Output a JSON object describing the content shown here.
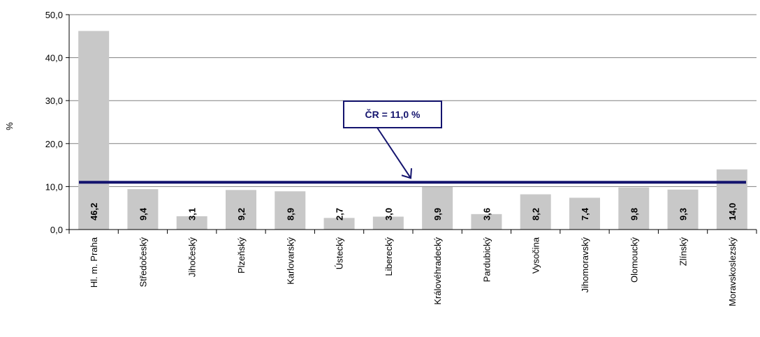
{
  "chart_data": {
    "type": "bar",
    "categories": [
      "Hl. m. Praha",
      "Středočeský",
      "Jihočeský",
      "Plzeňský",
      "Karlovarský",
      "Ústecký",
      "Liberecký",
      "Královéhradecký",
      "Pardubický",
      "Vysočina",
      "Jihomoravský",
      "Olomoucký",
      "Zlínský",
      "Moravskoslezský"
    ],
    "values": [
      46.2,
      9.4,
      3.1,
      9.2,
      8.9,
      2.7,
      3.0,
      9.9,
      3.6,
      8.2,
      7.4,
      9.8,
      9.3,
      14.0
    ],
    "value_labels": [
      "46,2",
      "9,4",
      "3,1",
      "9,2",
      "8,9",
      "2,7",
      "3,0",
      "9,9",
      "3,6",
      "8,2",
      "7,4",
      "9,8",
      "9,3",
      "14,0"
    ],
    "ylabel": "%",
    "ylim": [
      0,
      50
    ],
    "yticks": [
      0,
      10,
      20,
      30,
      40,
      50
    ],
    "ytick_labels": [
      "0,0",
      "10,0",
      "20,0",
      "30,0",
      "40,0",
      "50,0"
    ],
    "grid": true,
    "reference_line": {
      "value": 11.0,
      "label": "ČR = 11,0 %"
    },
    "colors": {
      "bar": "#c8c8c8",
      "reference_line": "#14146e",
      "grid": "#808080",
      "axis": "#000000"
    }
  }
}
